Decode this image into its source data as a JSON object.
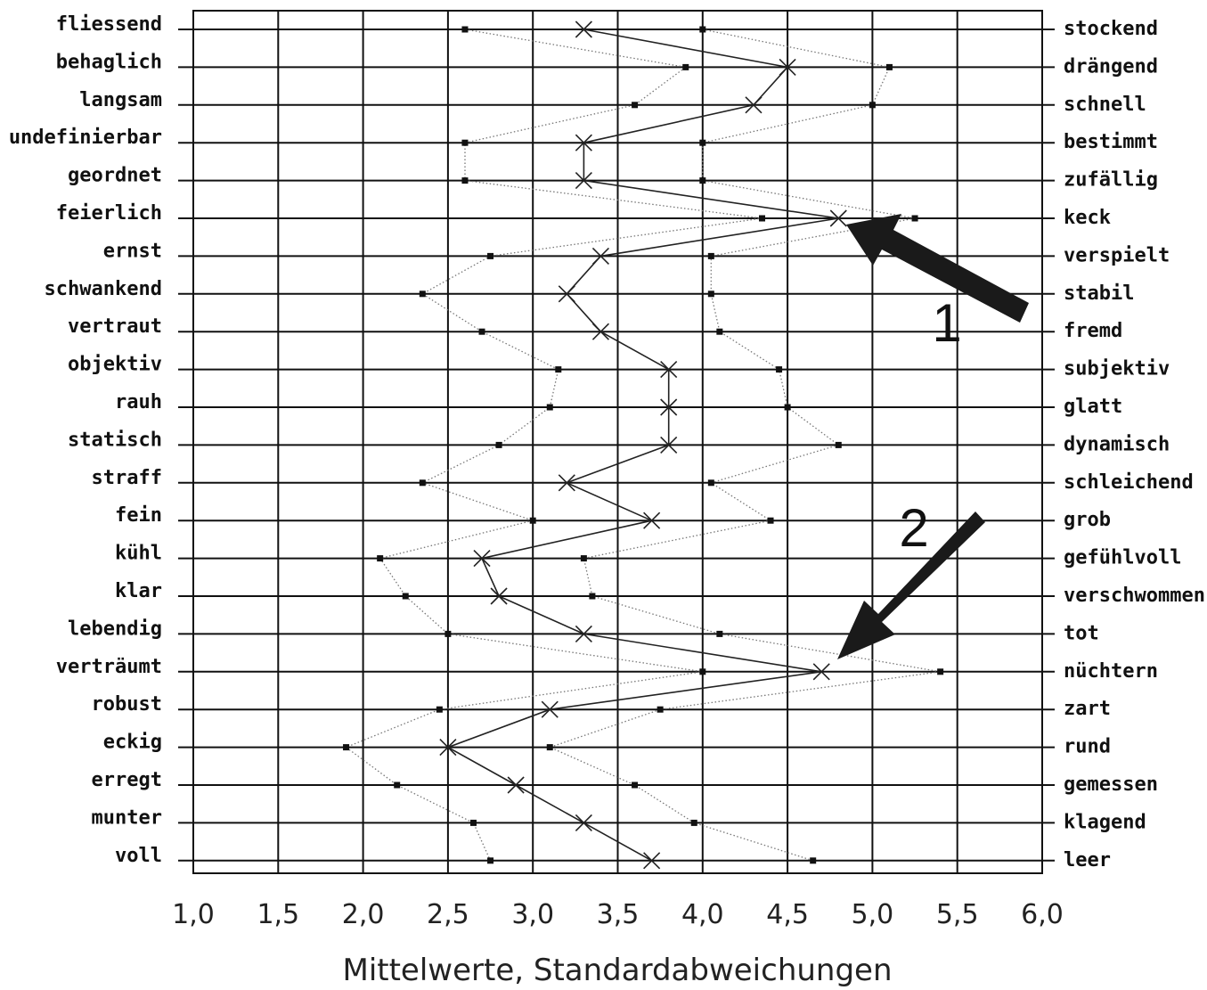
{
  "chart_data": {
    "type": "line",
    "xlabel": "Mittelwerte, Standardabweichungen",
    "xlim": [
      1.0,
      6.0
    ],
    "x_ticks": [
      "1,0",
      "1,5",
      "2,0",
      "2,5",
      "3,0",
      "3,5",
      "4,0",
      "4,5",
      "5,0",
      "5,5",
      "6,0"
    ],
    "x_tick_values": [
      1.0,
      1.5,
      2.0,
      2.5,
      3.0,
      3.5,
      4.0,
      4.5,
      5.0,
      5.5,
      6.0
    ],
    "left_labels": [
      "fliessend",
      "behaglich",
      "langsam",
      "undefinierbar",
      "geordnet",
      "feierlich",
      "ernst",
      "schwankend",
      "vertraut",
      "objektiv",
      "rauh",
      "statisch",
      "straff",
      "fein",
      "kühl",
      "klar",
      "lebendig",
      "verträumt",
      "robust",
      "eckig",
      "erregt",
      "munter",
      "voll"
    ],
    "right_labels": [
      "stockend",
      "drängend",
      "schnell",
      "bestimmt",
      "zufällig",
      "keck",
      "verspielt",
      "stabil",
      "fremd",
      "subjektiv",
      "glatt",
      "dynamisch",
      "schleichend",
      "grob",
      "gefühlvoll",
      "verschwommen",
      "tot",
      "nüchtern",
      "zart",
      "rund",
      "gemessen",
      "klagend",
      "leer"
    ],
    "series": [
      {
        "marker": "x",
        "style": "solid",
        "color": "#222222",
        "values": [
          3.3,
          4.5,
          4.3,
          3.3,
          3.3,
          4.8,
          3.4,
          3.2,
          3.4,
          3.8,
          3.8,
          3.8,
          3.2,
          3.7,
          2.7,
          2.8,
          3.3,
          4.7,
          3.1,
          2.5,
          2.9,
          3.3,
          3.7
        ]
      },
      {
        "marker": "square",
        "style": "dotted",
        "color": "#777777",
        "values": [
          2.6,
          3.9,
          3.6,
          2.6,
          2.6,
          4.35,
          2.75,
          2.35,
          2.7,
          3.15,
          3.1,
          2.8,
          2.35,
          3.0,
          2.1,
          2.25,
          2.5,
          4.0,
          2.45,
          1.9,
          2.2,
          2.65,
          2.75
        ]
      },
      {
        "marker": "square",
        "style": "dotted",
        "color": "#777777",
        "values": [
          4.0,
          5.1,
          5.0,
          4.0,
          4.0,
          5.25,
          4.05,
          4.05,
          4.1,
          4.45,
          4.5,
          4.8,
          4.05,
          4.4,
          3.3,
          3.35,
          4.1,
          5.4,
          3.75,
          3.1,
          3.6,
          3.95,
          4.65
        ]
      }
    ],
    "annotations": [
      {
        "text": "1",
        "points_to": "feierlich / keck"
      },
      {
        "text": "2",
        "points_to": "verträumt / nüchtern"
      }
    ]
  }
}
